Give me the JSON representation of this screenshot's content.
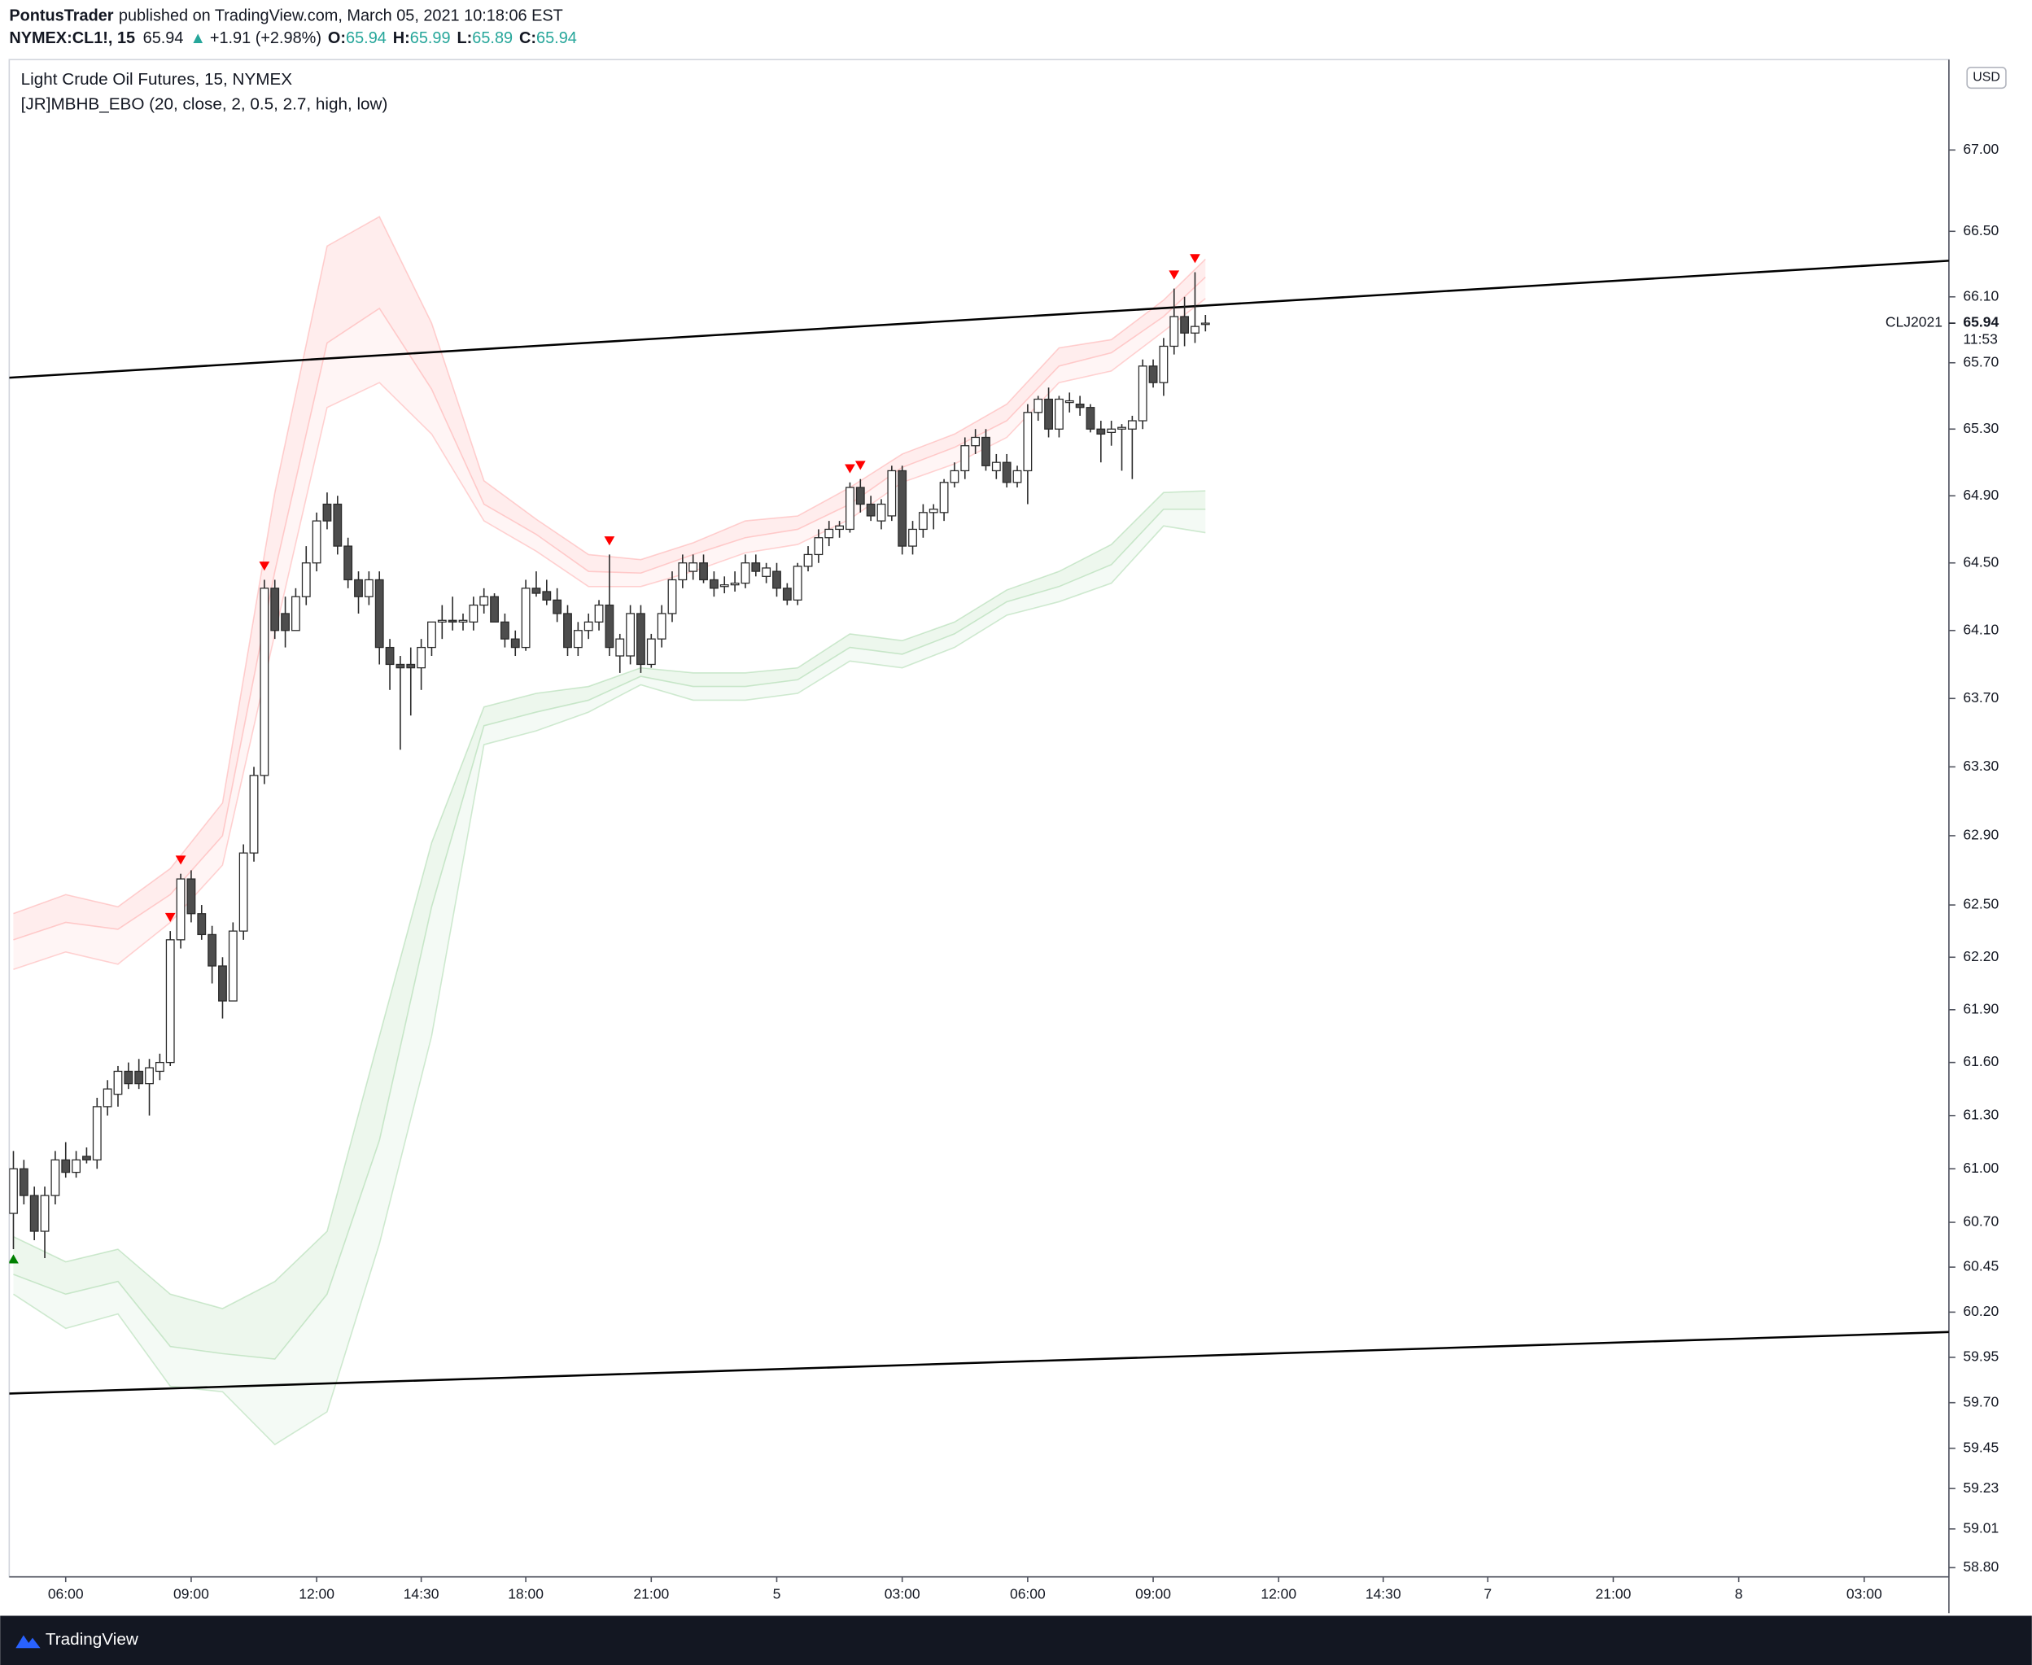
{
  "header": {
    "author": "PontusTrader",
    "published": "published on TradingView.com, March 05, 2021 10:18:06 EST"
  },
  "footer": {
    "brand": "TradingView"
  },
  "chart_data": {
    "type": "candlestick",
    "title": "Light Crude Oil Futures, 15, NYMEX",
    "indicator": "[JR]MBHB_EBO (20, close, 2, 0.5, 2.7, high, low)",
    "legend": {
      "symbol": "NYMEX:CL1!, 15",
      "price": "65.94",
      "change": "+1.91 (+2.98%)",
      "fields": [
        {
          "label": "O:",
          "value": "65.94"
        },
        {
          "label": "H:",
          "value": "65.99"
        },
        {
          "label": "L:",
          "value": "65.89"
        },
        {
          "label": "C:",
          "value": "65.94"
        }
      ]
    },
    "currency": "USD",
    "contract": "CLJ2021",
    "countdown": "11:53",
    "log_scale": true,
    "grid": false,
    "up_color": "#ffffff",
    "down_color": "#4d4d4d",
    "border_color": "#2a2a2a",
    "sell_color": "#ff0000",
    "buy_color": "#008000",
    "open": [
      60.75,
      61.0,
      60.85,
      60.65,
      60.85,
      61.05,
      60.98,
      61.07,
      61.05,
      61.35,
      61.42,
      61.55,
      61.55,
      61.48,
      61.55,
      61.6,
      62.3,
      62.65,
      62.45,
      62.33,
      62.15,
      61.95,
      62.35,
      62.8,
      63.25,
      64.35,
      64.2,
      64.1,
      64.3,
      64.5,
      64.85,
      64.85,
      64.6,
      64.4,
      64.3,
      64.4,
      64.0,
      63.9,
      63.9,
      63.88,
      64.0,
      64.15,
      64.16,
      64.15,
      64.15,
      64.25,
      64.3,
      64.15,
      64.05,
      64.0,
      64.35,
      64.33,
      64.28,
      64.2,
      64.0,
      64.1,
      64.15,
      64.25,
      63.95,
      63.95,
      64.2,
      63.9,
      64.05,
      64.2,
      64.4,
      64.45,
      64.5,
      64.4,
      64.36,
      64.37,
      64.38,
      64.5,
      64.42,
      64.45,
      64.35,
      64.28,
      64.48,
      64.55,
      64.65,
      64.7,
      64.7,
      64.95,
      64.85,
      64.75,
      64.78,
      65.05,
      64.6,
      64.7,
      64.8,
      64.8,
      64.98,
      65.05,
      65.2,
      65.25,
      65.05,
      65.1,
      64.98,
      65.05,
      65.4,
      65.48,
      65.3,
      65.46,
      65.45,
      65.43,
      65.3,
      65.28,
      65.3,
      65.3,
      65.35,
      65.68,
      65.58,
      65.8,
      65.98,
      65.88,
      65.94
    ],
    "high": [
      61.1,
      61.05,
      60.9,
      60.9,
      61.1,
      61.15,
      61.1,
      61.12,
      61.4,
      61.5,
      61.58,
      61.6,
      61.62,
      61.62,
      61.65,
      62.35,
      62.68,
      62.7,
      62.5,
      62.38,
      62.2,
      62.4,
      62.85,
      63.3,
      64.4,
      64.4,
      64.3,
      64.35,
      64.6,
      64.8,
      64.92,
      64.9,
      64.65,
      64.45,
      64.45,
      64.45,
      64.05,
      63.95,
      64.0,
      64.05,
      64.15,
      64.25,
      64.3,
      64.2,
      64.3,
      64.35,
      64.32,
      64.2,
      64.1,
      64.4,
      64.45,
      64.4,
      64.35,
      64.25,
      64.15,
      64.2,
      64.28,
      64.55,
      64.08,
      64.25,
      64.25,
      64.08,
      64.25,
      64.45,
      64.55,
      64.55,
      64.55,
      64.45,
      64.42,
      64.45,
      64.55,
      64.55,
      64.5,
      64.5,
      64.38,
      64.5,
      64.6,
      64.7,
      64.75,
      64.75,
      64.98,
      65.0,
      64.9,
      64.88,
      65.08,
      65.08,
      64.75,
      64.85,
      64.85,
      65.0,
      65.1,
      65.25,
      65.3,
      65.3,
      65.15,
      65.15,
      65.08,
      65.45,
      65.5,
      65.55,
      65.5,
      65.52,
      65.5,
      65.45,
      65.35,
      65.35,
      65.33,
      65.38,
      65.72,
      65.72,
      65.85,
      66.15,
      66.1,
      66.25,
      65.99
    ],
    "low": [
      60.55,
      60.8,
      60.6,
      60.5,
      60.8,
      60.95,
      60.95,
      61.03,
      61.0,
      61.3,
      61.35,
      61.45,
      61.45,
      61.3,
      61.5,
      61.58,
      62.25,
      62.4,
      62.3,
      62.05,
      61.85,
      61.95,
      62.3,
      62.75,
      63.2,
      64.05,
      64.0,
      64.1,
      64.25,
      64.45,
      64.7,
      64.55,
      64.35,
      64.2,
      64.25,
      63.9,
      63.75,
      63.4,
      63.6,
      63.75,
      63.95,
      64.05,
      64.1,
      64.1,
      64.1,
      64.2,
      64.15,
      64.0,
      63.95,
      63.98,
      64.3,
      64.25,
      64.15,
      63.95,
      63.95,
      64.05,
      64.1,
      63.95,
      63.85,
      63.9,
      63.85,
      63.88,
      64.0,
      64.15,
      64.35,
      64.4,
      64.38,
      64.3,
      64.32,
      64.33,
      64.35,
      64.42,
      64.38,
      64.3,
      64.25,
      64.25,
      64.45,
      64.5,
      64.6,
      64.65,
      64.68,
      64.8,
      64.75,
      64.7,
      64.75,
      64.55,
      64.55,
      64.65,
      64.7,
      64.75,
      64.95,
      65.0,
      65.15,
      65.05,
      65.0,
      64.95,
      64.95,
      64.85,
      65.35,
      65.25,
      65.25,
      65.4,
      65.38,
      65.28,
      65.1,
      65.2,
      65.05,
      65.0,
      65.3,
      65.55,
      65.5,
      65.75,
      65.8,
      65.82,
      65.89
    ],
    "close": [
      61.0,
      60.85,
      60.65,
      60.85,
      61.05,
      60.98,
      61.05,
      61.05,
      61.35,
      61.45,
      61.55,
      61.48,
      61.48,
      61.57,
      61.6,
      62.3,
      62.65,
      62.45,
      62.33,
      62.15,
      61.95,
      62.35,
      62.8,
      63.25,
      64.35,
      64.1,
      64.1,
      64.3,
      64.5,
      64.75,
      64.75,
      64.6,
      64.4,
      64.3,
      64.4,
      64.0,
      63.9,
      63.88,
      63.88,
      64.0,
      64.15,
      64.16,
      64.15,
      64.16,
      64.25,
      64.3,
      64.15,
      64.05,
      64.0,
      64.35,
      64.32,
      64.28,
      64.2,
      64.0,
      64.1,
      64.15,
      64.25,
      64.0,
      64.05,
      64.2,
      63.9,
      64.05,
      64.2,
      64.4,
      64.5,
      64.5,
      64.4,
      64.35,
      64.37,
      64.38,
      64.5,
      64.45,
      64.47,
      64.35,
      64.28,
      64.48,
      64.55,
      64.65,
      64.7,
      64.72,
      64.95,
      64.85,
      64.78,
      64.85,
      65.05,
      64.6,
      64.7,
      64.8,
      64.82,
      64.98,
      65.05,
      65.2,
      65.25,
      65.08,
      65.1,
      64.98,
      65.05,
      65.4,
      65.48,
      65.3,
      65.48,
      65.47,
      65.43,
      65.3,
      65.27,
      65.3,
      65.31,
      65.35,
      65.68,
      65.58,
      65.8,
      65.98,
      65.88,
      65.92,
      65.94
    ],
    "bands": [
      {
        "color": "#ff5252",
        "x": [
          0,
          5,
          10,
          15,
          20,
          25,
          30,
          35,
          40,
          45,
          50,
          55,
          60,
          65,
          70,
          75,
          80,
          85,
          90,
          95,
          100,
          105,
          110,
          114
        ],
        "top": [
          62.45,
          62.56,
          62.49,
          62.71,
          63.09,
          64.92,
          66.41,
          66.59,
          65.94,
          64.99,
          64.76,
          64.55,
          64.52,
          64.62,
          64.75,
          64.78,
          64.95,
          65.15,
          65.27,
          65.45,
          65.79,
          65.84,
          66.08,
          66.33
        ],
        "mid": [
          62.3,
          62.4,
          62.36,
          62.56,
          62.9,
          64.45,
          65.82,
          66.03,
          65.54,
          64.85,
          64.67,
          64.45,
          64.44,
          64.55,
          64.65,
          64.7,
          64.85,
          65.07,
          65.19,
          65.35,
          65.68,
          65.76,
          65.98,
          66.22
        ],
        "bottom": [
          62.13,
          62.23,
          62.16,
          62.4,
          62.73,
          64.08,
          65.43,
          65.58,
          65.27,
          64.75,
          64.57,
          64.36,
          64.36,
          64.45,
          64.56,
          64.61,
          64.76,
          64.98,
          65.09,
          65.25,
          65.58,
          65.65,
          65.89,
          66.09
        ]
      },
      {
        "color": "#4caf50",
        "x": [
          0,
          5,
          10,
          15,
          20,
          25,
          30,
          35,
          40,
          45,
          50,
          55,
          60,
          65,
          70,
          75,
          80,
          85,
          90,
          95,
          100,
          105,
          110,
          114
        ],
        "top": [
          60.62,
          60.48,
          60.55,
          60.3,
          60.22,
          60.37,
          60.65,
          61.75,
          62.86,
          63.65,
          63.73,
          63.77,
          63.88,
          63.85,
          63.85,
          63.88,
          64.08,
          64.04,
          64.15,
          64.34,
          64.45,
          64.61,
          64.92,
          64.93
        ],
        "mid": [
          60.41,
          60.3,
          60.37,
          60.01,
          59.97,
          59.94,
          60.3,
          61.16,
          62.49,
          63.54,
          63.62,
          63.69,
          63.83,
          63.77,
          63.77,
          63.81,
          64.0,
          63.96,
          64.08,
          64.27,
          64.36,
          64.49,
          64.82,
          64.82
        ],
        "bottom": [
          60.3,
          60.11,
          60.19,
          59.79,
          59.76,
          59.47,
          59.65,
          60.58,
          61.75,
          63.43,
          63.51,
          63.62,
          63.78,
          63.69,
          63.69,
          63.73,
          63.92,
          63.88,
          64.0,
          64.19,
          64.27,
          64.38,
          64.72,
          64.68
        ]
      }
    ],
    "trendlines": [
      {
        "color": "#000000",
        "x": [
          -0.4,
          185.1
        ],
        "values": [
          65.61,
          66.32
        ]
      },
      {
        "color": "#000000",
        "x": [
          -0.4,
          185.1
        ],
        "values": [
          59.75,
          60.09
        ]
      }
    ],
    "sell_signals": [
      15,
      16,
      24,
      57,
      80,
      81,
      111,
      113
    ],
    "buy_signals": [
      0
    ],
    "xlim": [
      -0.4,
      185.1
    ],
    "xticks": [
      {
        "value": 5,
        "label": "06:00"
      },
      {
        "value": 17,
        "label": "09:00"
      },
      {
        "value": 29,
        "label": "12:00"
      },
      {
        "value": 39,
        "label": "14:30"
      },
      {
        "value": 49,
        "label": "18:00"
      },
      {
        "value": 61,
        "label": "21:00"
      },
      {
        "value": 73,
        "label": "5"
      },
      {
        "value": 85,
        "label": "03:00"
      },
      {
        "value": 97,
        "label": "06:00"
      },
      {
        "value": 109,
        "label": "09:00"
      },
      {
        "value": 121,
        "label": "12:00"
      },
      {
        "value": 131,
        "label": "14:30"
      },
      {
        "value": 141,
        "label": "7"
      },
      {
        "value": 153,
        "label": "21:00"
      },
      {
        "value": 165,
        "label": "8"
      },
      {
        "value": 177,
        "label": "03:00"
      }
    ],
    "ylim": [
      58.75,
      67.56
    ],
    "yticks": [
      {
        "value": 67,
        "label": "67.00"
      },
      {
        "value": 66.5,
        "label": "66.50"
      },
      {
        "value": 66.1,
        "label": "66.10"
      },
      {
        "value": 65.7,
        "label": "65.70"
      },
      {
        "value": 65.3,
        "label": "65.30"
      },
      {
        "value": 64.9,
        "label": "64.90"
      },
      {
        "value": 64.5,
        "label": "64.50"
      },
      {
        "value": 64.1,
        "label": "64.10"
      },
      {
        "value": 63.7,
        "label": "63.70"
      },
      {
        "value": 63.3,
        "label": "63.30"
      },
      {
        "value": 62.9,
        "label": "62.90"
      },
      {
        "value": 62.5,
        "label": "62.50"
      },
      {
        "value": 62.2,
        "label": "62.20"
      },
      {
        "value": 61.9,
        "label": "61.90"
      },
      {
        "value": 61.6,
        "label": "61.60"
      },
      {
        "value": 61.3,
        "label": "61.30"
      },
      {
        "value": 61,
        "label": "61.00"
      },
      {
        "value": 60.7,
        "label": "60.70"
      },
      {
        "value": 60.45,
        "label": "60.45"
      },
      {
        "value": 60.2,
        "label": "60.20"
      },
      {
        "value": 59.95,
        "label": "59.95"
      },
      {
        "value": 59.7,
        "label": "59.70"
      },
      {
        "value": 59.45,
        "label": "59.45"
      },
      {
        "value": 59.23,
        "label": "59.23"
      },
      {
        "value": 59.01,
        "label": "59.01"
      },
      {
        "value": 58.8,
        "label": "58.80"
      }
    ]
  }
}
